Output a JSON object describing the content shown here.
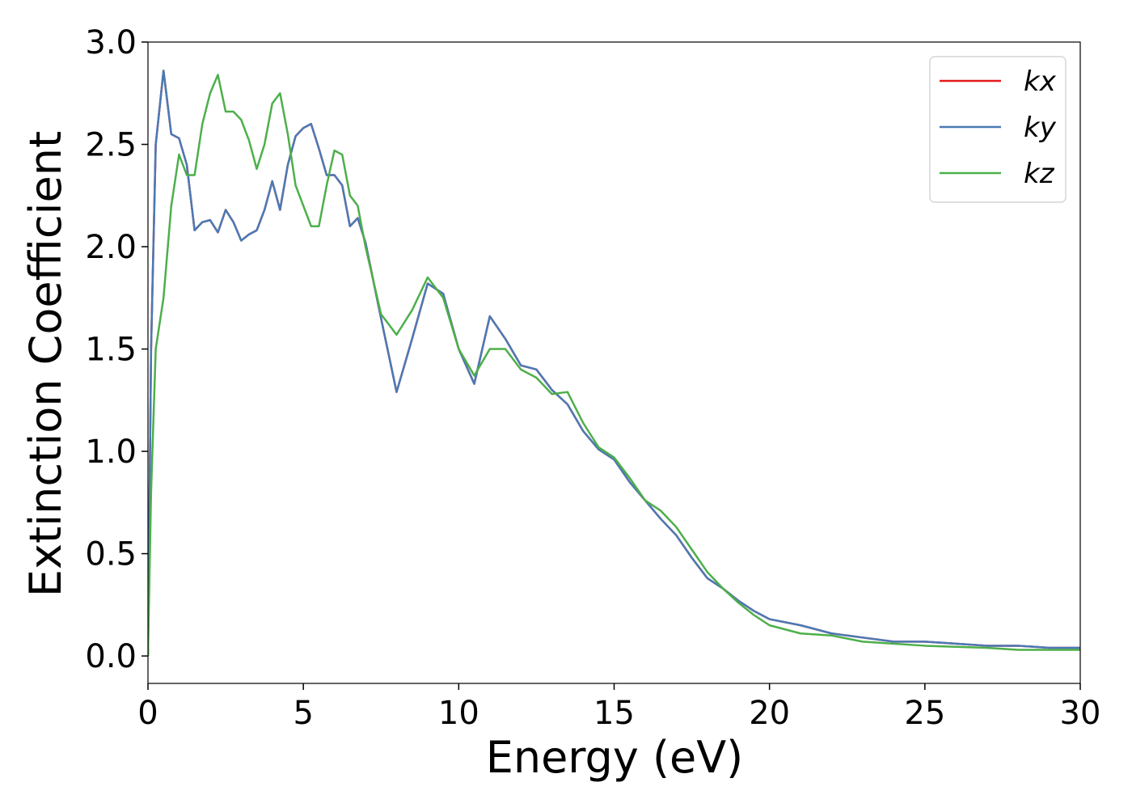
{
  "chart_data": {
    "type": "line",
    "xlabel": "Energy (eV)",
    "ylabel": "Extinction Coefficient",
    "x": [
      0,
      0.1,
      0.25,
      0.5,
      0.75,
      1,
      1.25,
      1.5,
      1.75,
      2,
      2.25,
      2.5,
      2.75,
      3,
      3.25,
      3.5,
      3.75,
      4,
      4.25,
      4.5,
      4.75,
      5,
      5.25,
      5.5,
      5.75,
      6,
      6.25,
      6.5,
      6.75,
      7,
      7.5,
      8,
      8.5,
      9,
      9.5,
      10,
      10.5,
      11,
      11.5,
      12,
      12.5,
      13,
      13.5,
      14,
      14.5,
      15,
      15.5,
      16,
      16.5,
      17,
      17.5,
      18,
      18.5,
      19,
      19.5,
      20,
      21,
      22,
      23,
      24,
      25,
      26,
      27,
      28,
      29,
      30
    ],
    "series": [
      {
        "name": "kx",
        "color": "#e41a1c",
        "values": [
          0,
          1.5,
          2.5,
          2.86,
          2.55,
          2.53,
          2.4,
          2.08,
          2.12,
          2.13,
          2.07,
          2.18,
          2.12,
          2.03,
          2.06,
          2.08,
          2.18,
          2.32,
          2.18,
          2.4,
          2.54,
          2.58,
          2.6,
          2.48,
          2.35,
          2.35,
          2.3,
          2.1,
          2.14,
          2.02,
          1.65,
          1.29,
          1.55,
          1.82,
          1.77,
          1.5,
          1.33,
          1.66,
          1.55,
          1.42,
          1.4,
          1.3,
          1.23,
          1.1,
          1.01,
          0.96,
          0.85,
          0.76,
          0.67,
          0.59,
          0.48,
          0.38,
          0.33,
          0.27,
          0.22,
          0.18,
          0.15,
          0.11,
          0.09,
          0.07,
          0.07,
          0.06,
          0.05,
          0.05,
          0.04,
          0.04
        ]
      },
      {
        "name": "ky",
        "color": "#4a7ab5",
        "values": [
          0,
          1.5,
          2.5,
          2.86,
          2.55,
          2.53,
          2.4,
          2.08,
          2.12,
          2.13,
          2.07,
          2.18,
          2.12,
          2.03,
          2.06,
          2.08,
          2.18,
          2.32,
          2.18,
          2.4,
          2.54,
          2.58,
          2.6,
          2.48,
          2.35,
          2.35,
          2.3,
          2.1,
          2.14,
          2.02,
          1.65,
          1.29,
          1.55,
          1.82,
          1.77,
          1.5,
          1.33,
          1.66,
          1.55,
          1.42,
          1.4,
          1.3,
          1.23,
          1.1,
          1.01,
          0.96,
          0.85,
          0.76,
          0.67,
          0.59,
          0.48,
          0.38,
          0.33,
          0.27,
          0.22,
          0.18,
          0.15,
          0.11,
          0.09,
          0.07,
          0.07,
          0.06,
          0.05,
          0.05,
          0.04,
          0.04
        ]
      },
      {
        "name": "kz",
        "color": "#4daf4a",
        "values": [
          0,
          0.8,
          1.5,
          1.75,
          2.2,
          2.45,
          2.35,
          2.35,
          2.6,
          2.75,
          2.84,
          2.66,
          2.66,
          2.62,
          2.52,
          2.38,
          2.5,
          2.7,
          2.75,
          2.55,
          2.3,
          2.2,
          2.1,
          2.1,
          2.3,
          2.47,
          2.45,
          2.25,
          2.2,
          2.0,
          1.67,
          1.57,
          1.69,
          1.85,
          1.75,
          1.5,
          1.37,
          1.5,
          1.5,
          1.4,
          1.36,
          1.28,
          1.29,
          1.14,
          1.02,
          0.97,
          0.87,
          0.76,
          0.71,
          0.63,
          0.52,
          0.41,
          0.33,
          0.26,
          0.2,
          0.15,
          0.11,
          0.1,
          0.07,
          0.06,
          0.05,
          0.045,
          0.04,
          0.03,
          0.03,
          0.03
        ]
      }
    ],
    "xlim": [
      0,
      30
    ],
    "xticks": [
      0,
      5,
      10,
      15,
      20,
      25,
      30
    ],
    "ylim": [
      -0.134,
      3.0
    ],
    "yticks": [
      {
        "value": 0,
        "label": "0.0"
      },
      0.5,
      {
        "value": 1,
        "label": "1.0"
      },
      1.5,
      {
        "value": 2,
        "label": "2.0"
      },
      2.5,
      {
        "value": 3,
        "label": "3.0"
      }
    ],
    "grid": false,
    "legend": "upper right"
  }
}
